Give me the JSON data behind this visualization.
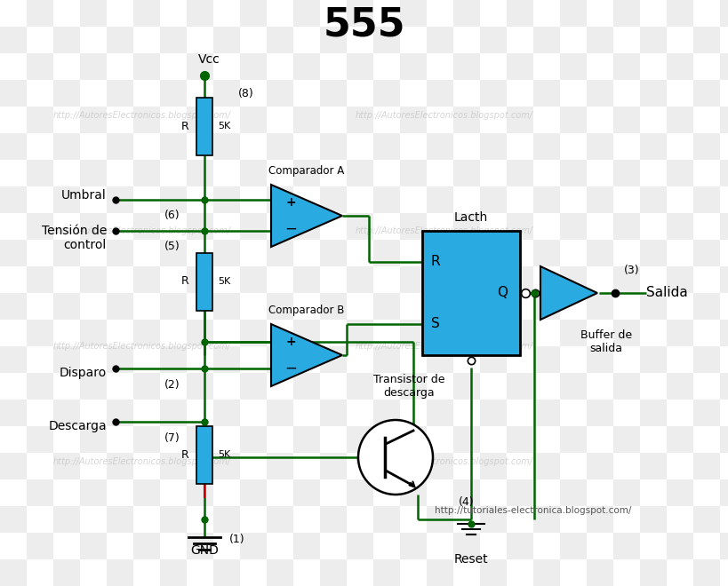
{
  "title": "555",
  "background_color": "#ffffff",
  "checker_light": "#d8d8d8",
  "checker_white": "#ffffff",
  "wire_color": "#006400",
  "black_color": "#000000",
  "blue_color": "#29abe2",
  "watermark1": "http://tutoriales-electronica.blogspot.com/",
  "watermark2": "http://AutoresElectronicos.blogspot.com/",
  "labels": {
    "title": "555",
    "vcc": "Vcc",
    "gnd": "GND",
    "umbral": "Umbral",
    "tension": "Tensión de\ncontrol",
    "disparo": "Disparo",
    "descarga": "Descarga",
    "salida": "Salida",
    "reset": "Reset",
    "comp_a": "Comparador A",
    "comp_b": "Comparador B",
    "latch": "Lacth",
    "buffer": "Buffer de\nsalida",
    "transistor": "Transistor de\ndescarga",
    "p1": "(1)",
    "p2": "(2)",
    "p3": "(3)",
    "p4": "(4)",
    "p5": "(5)",
    "p6": "(6)",
    "p7": "(7)",
    "p8": "(8)",
    "R": "R",
    "5K": "5K",
    "RS_R": "R",
    "RS_S": "S",
    "RS_Q": "Q"
  }
}
